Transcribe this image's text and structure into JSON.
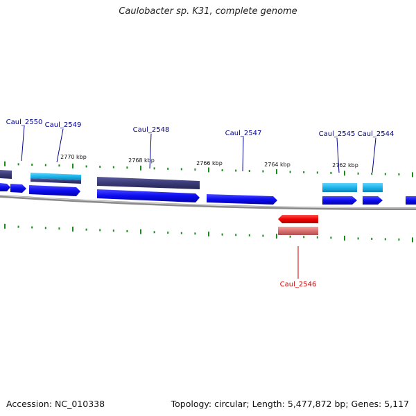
{
  "title": "Caulobacter sp. K31, complete genome",
  "footer": {
    "accession": "Accession: NC_010338",
    "summary": "Topology: circular; Length: 5,477,872 bp; Genes: 5,117"
  },
  "ticks": [
    "2770 kbp",
    "2768 kbp",
    "2766 kbp",
    "2764 kbp",
    "2762 kbp"
  ],
  "genes": [
    {
      "label": "Caul_2550",
      "strand": "plus"
    },
    {
      "label": "Caul_2549",
      "strand": "plus"
    },
    {
      "label": "Caul_2548",
      "strand": "plus"
    },
    {
      "label": "Caul_2547",
      "strand": "plus"
    },
    {
      "label": "Caul_2545",
      "strand": "plus"
    },
    {
      "label": "Caul_2544",
      "strand": "plus"
    },
    {
      "label": "Caul_2546",
      "strand": "minus"
    }
  ],
  "colors": {
    "cds_plus": "#1010e8",
    "cds_minus": "#e81010",
    "gene_dark": "#3c3c7c",
    "gene_light": "#20b8e8",
    "gene_pink": "#e07878",
    "tick_green": "#1a8a1a",
    "label_blue": "#00008b",
    "label_red": "#cc0000",
    "backbone": "#808080"
  }
}
